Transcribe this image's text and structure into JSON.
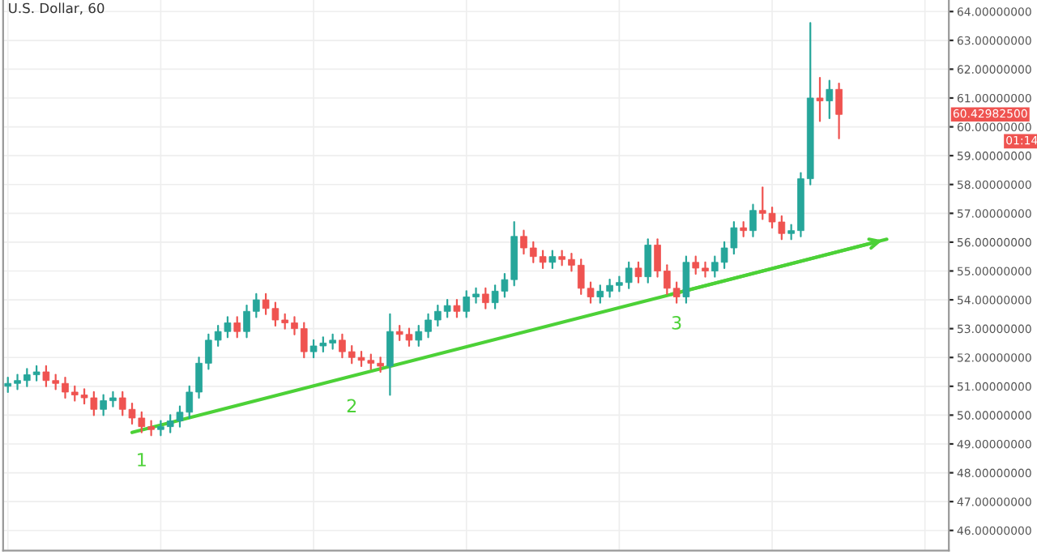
{
  "chart_data": {
    "type": "candlestick",
    "title": "U.S. Dollar, 60",
    "categories": [
      null,
      null,
      null,
      null,
      null,
      null,
      null,
      null,
      null,
      null,
      null,
      null,
      null,
      null,
      null,
      null,
      null,
      null,
      null,
      null,
      null,
      null,
      null,
      null,
      null,
      null,
      null,
      null,
      null,
      null,
      null,
      null,
      null,
      null,
      null,
      null,
      null,
      null,
      null,
      null,
      null,
      null,
      null,
      null,
      null,
      null,
      null,
      null,
      null,
      null,
      null,
      null,
      null,
      null,
      null,
      null,
      null,
      null,
      null,
      null,
      null,
      null,
      null,
      null,
      null,
      null,
      null,
      null,
      null,
      null,
      null,
      null,
      null,
      null,
      null,
      null,
      null,
      null,
      null,
      null,
      null,
      null,
      null,
      null,
      null,
      null,
      null,
      null,
      null,
      null,
      null,
      null,
      null,
      null,
      null,
      null,
      null,
      null,
      null
    ],
    "ohlc": [
      [
        51.0,
        51.3,
        50.8,
        51.1
      ],
      [
        51.1,
        51.4,
        50.9,
        51.2
      ],
      [
        51.2,
        51.6,
        51.0,
        51.4
      ],
      [
        51.4,
        51.7,
        51.2,
        51.5
      ],
      [
        51.5,
        51.7,
        51.0,
        51.2
      ],
      [
        51.2,
        51.4,
        50.9,
        51.1
      ],
      [
        51.1,
        51.3,
        50.6,
        50.8
      ],
      [
        50.8,
        51.0,
        50.5,
        50.7
      ],
      [
        50.7,
        50.9,
        50.4,
        50.6
      ],
      [
        50.6,
        50.8,
        50.0,
        50.2
      ],
      [
        50.2,
        50.7,
        50.0,
        50.5
      ],
      [
        50.5,
        50.8,
        50.3,
        50.6
      ],
      [
        50.6,
        50.8,
        50.0,
        50.2
      ],
      [
        50.2,
        50.4,
        49.7,
        49.9
      ],
      [
        49.9,
        50.1,
        49.4,
        49.6
      ],
      [
        49.6,
        49.8,
        49.3,
        49.5
      ],
      [
        49.5,
        49.8,
        49.3,
        49.6
      ],
      [
        49.6,
        50.0,
        49.4,
        49.8
      ],
      [
        49.8,
        50.3,
        49.6,
        50.1
      ],
      [
        50.1,
        51.0,
        49.9,
        50.8
      ],
      [
        50.8,
        52.0,
        50.6,
        51.8
      ],
      [
        51.8,
        52.8,
        51.6,
        52.6
      ],
      [
        52.6,
        53.1,
        52.4,
        52.9
      ],
      [
        52.9,
        53.4,
        52.7,
        53.2
      ],
      [
        53.2,
        53.4,
        52.7,
        52.9
      ],
      [
        52.9,
        53.8,
        52.7,
        53.6
      ],
      [
        53.6,
        54.2,
        53.4,
        54.0
      ],
      [
        54.0,
        54.2,
        53.5,
        53.7
      ],
      [
        53.7,
        53.9,
        53.1,
        53.3
      ],
      [
        53.3,
        53.5,
        53.0,
        53.2
      ],
      [
        53.2,
        53.4,
        52.8,
        53.0
      ],
      [
        53.0,
        53.2,
        52.0,
        52.2
      ],
      [
        52.2,
        52.6,
        52.0,
        52.4
      ],
      [
        52.4,
        52.7,
        52.2,
        52.5
      ],
      [
        52.5,
        52.8,
        52.3,
        52.6
      ],
      [
        52.6,
        52.8,
        52.0,
        52.2
      ],
      [
        52.2,
        52.4,
        51.8,
        52.0
      ],
      [
        52.0,
        52.2,
        51.7,
        51.9
      ],
      [
        51.9,
        52.1,
        51.6,
        51.8
      ],
      [
        51.8,
        52.0,
        51.5,
        51.7
      ],
      [
        51.7,
        53.5,
        50.7,
        52.9
      ],
      [
        52.9,
        53.1,
        52.6,
        52.8
      ],
      [
        52.8,
        53.0,
        52.4,
        52.6
      ],
      [
        52.6,
        53.1,
        52.4,
        52.9
      ],
      [
        52.9,
        53.5,
        52.7,
        53.3
      ],
      [
        53.3,
        53.8,
        53.1,
        53.6
      ],
      [
        53.6,
        54.0,
        53.4,
        53.8
      ],
      [
        53.8,
        54.0,
        53.4,
        53.6
      ],
      [
        53.6,
        54.3,
        53.4,
        54.1
      ],
      [
        54.1,
        54.4,
        53.9,
        54.2
      ],
      [
        54.2,
        54.4,
        53.7,
        53.9
      ],
      [
        53.9,
        54.5,
        53.7,
        54.3
      ],
      [
        54.3,
        54.9,
        54.1,
        54.7
      ],
      [
        54.7,
        56.7,
        54.5,
        56.2
      ],
      [
        56.2,
        56.4,
        55.6,
        55.8
      ],
      [
        55.8,
        56.0,
        55.3,
        55.5
      ],
      [
        55.5,
        55.7,
        55.1,
        55.3
      ],
      [
        55.3,
        55.7,
        55.1,
        55.5
      ],
      [
        55.5,
        55.7,
        55.2,
        55.4
      ],
      [
        55.4,
        55.6,
        55.0,
        55.2
      ],
      [
        55.2,
        55.4,
        54.2,
        54.4
      ],
      [
        54.4,
        54.6,
        53.9,
        54.1
      ],
      [
        54.1,
        54.5,
        53.9,
        54.3
      ],
      [
        54.3,
        54.7,
        54.1,
        54.5
      ],
      [
        54.5,
        54.8,
        54.3,
        54.6
      ],
      [
        54.6,
        55.3,
        54.4,
        55.1
      ],
      [
        55.1,
        55.3,
        54.6,
        54.8
      ],
      [
        54.8,
        56.1,
        54.6,
        55.9
      ],
      [
        55.9,
        56.1,
        54.8,
        55.0
      ],
      [
        55.0,
        55.2,
        54.2,
        54.4
      ],
      [
        54.4,
        54.6,
        53.9,
        54.1
      ],
      [
        54.1,
        55.5,
        53.9,
        55.3
      ],
      [
        55.3,
        55.5,
        54.9,
        55.1
      ],
      [
        55.1,
        55.3,
        54.8,
        55.0
      ],
      [
        55.0,
        55.5,
        54.8,
        55.3
      ],
      [
        55.3,
        56.0,
        55.1,
        55.8
      ],
      [
        55.8,
        56.7,
        55.6,
        56.5
      ],
      [
        56.5,
        56.7,
        56.2,
        56.4
      ],
      [
        56.4,
        57.3,
        56.2,
        57.1
      ],
      [
        57.1,
        57.9,
        56.8,
        57.0
      ],
      [
        57.0,
        57.2,
        56.5,
        56.7
      ],
      [
        56.7,
        56.9,
        56.1,
        56.3
      ],
      [
        56.3,
        56.6,
        56.1,
        56.4
      ],
      [
        56.4,
        58.4,
        56.2,
        58.2
      ],
      [
        58.2,
        63.6,
        58.0,
        61.0
      ],
      [
        61.0,
        61.7,
        60.2,
        60.9
      ],
      [
        60.9,
        61.6,
        60.3,
        61.3
      ],
      [
        61.3,
        61.5,
        59.6,
        60.43
      ],
      null,
      null,
      null,
      null,
      null,
      null,
      null,
      null,
      null,
      null,
      null
    ],
    "colors": [
      "#26a69a",
      "#26a69a",
      "#26a69a",
      "#26a69a",
      "#ef5350",
      "#ef5350",
      "#ef5350",
      "#ef5350",
      "#ef5350",
      "#ef5350",
      "#26a69a",
      "#26a69a",
      "#ef5350",
      "#ef5350",
      "#ef5350",
      "#ef5350",
      "#26a69a",
      "#26a69a",
      "#26a69a",
      "#26a69a",
      "#26a69a",
      "#26a69a",
      "#26a69a",
      "#26a69a",
      "#ef5350",
      "#26a69a",
      "#26a69a",
      "#ef5350",
      "#ef5350",
      "#ef5350",
      "#ef5350",
      "#ef5350",
      "#26a69a",
      "#26a69a",
      "#26a69a",
      "#ef5350",
      "#ef5350",
      "#ef5350",
      "#ef5350",
      "#ef5350",
      "#26a69a",
      "#ef5350",
      "#ef5350",
      "#26a69a",
      "#26a69a",
      "#26a69a",
      "#26a69a",
      "#ef5350",
      "#26a69a",
      "#26a69a",
      "#ef5350",
      "#26a69a",
      "#26a69a",
      "#26a69a",
      "#ef5350",
      "#ef5350",
      "#ef5350",
      "#26a69a",
      "#ef5350",
      "#ef5350",
      "#ef5350",
      "#ef5350",
      "#26a69a",
      "#26a69a",
      "#26a69a",
      "#26a69a",
      "#ef5350",
      "#26a69a",
      "#ef5350",
      "#ef5350",
      "#ef5350",
      "#26a69a",
      "#ef5350",
      "#ef5350",
      "#26a69a",
      "#26a69a",
      "#26a69a",
      "#ef5350",
      "#26a69a",
      "#ef5350",
      "#ef5350",
      "#ef5350",
      "#26a69a",
      "#26a69a",
      "#26a69a",
      "#ef5350",
      "#26a69a",
      "#ef5350",
      null,
      null,
      null,
      null,
      null,
      null,
      null,
      null,
      null,
      null,
      null
    ],
    "series": [
      {
        "type": "line",
        "color": "#4cd137",
        "values": [
          null,
          null,
          null,
          null,
          null,
          null,
          null,
          null,
          null,
          null,
          null,
          null,
          null,
          49.4,
          null,
          null,
          null,
          null,
          null,
          null,
          null,
          null,
          null,
          null,
          null,
          null,
          null,
          null,
          null,
          null,
          null,
          null,
          null,
          null,
          null,
          51.27,
          null,
          null,
          null,
          null,
          null,
          null,
          null,
          null,
          null,
          null,
          null,
          null,
          null,
          null,
          null,
          null,
          null,
          null,
          null,
          null,
          null,
          null,
          null,
          null,
          null,
          null,
          null,
          null,
          null,
          null,
          null,
          null,
          null,
          54.15,
          null,
          null,
          null,
          null,
          null,
          null,
          null,
          null,
          null,
          null,
          null,
          null,
          null,
          null,
          null,
          null,
          null,
          null,
          null,
          null,
          null,
          null,
          56.1,
          null,
          null,
          null,
          null,
          null,
          null
        ]
      }
    ],
    "annotations": [
      "1",
      "2",
      "3",
      "60.42982500",
      "01:14"
    ],
    "ylim": [
      45.3,
      64.4
    ],
    "yticks": [
      {
        "value": 46,
        "label": "46.00000000"
      },
      {
        "value": 47,
        "label": "47.00000000"
      },
      {
        "value": 48,
        "label": "48.00000000"
      },
      {
        "value": 49,
        "label": "49.00000000"
      },
      {
        "value": 50,
        "label": "50.00000000"
      },
      {
        "value": 51,
        "label": "51.00000000"
      },
      {
        "value": 52,
        "label": "52.00000000"
      },
      {
        "value": 53,
        "label": "53.00000000"
      },
      {
        "value": 54,
        "label": "54.00000000"
      },
      {
        "value": 55,
        "label": "55.00000000"
      },
      {
        "value": 56,
        "label": "56.00000000"
      },
      {
        "value": 57,
        "label": "57.00000000"
      },
      {
        "value": 58,
        "label": "58.00000000"
      },
      {
        "value": 59,
        "label": "59.00000000"
      },
      {
        "value": 60,
        "label": "60.00000000"
      },
      {
        "value": 61,
        "label": "61.00000000"
      },
      {
        "value": 62,
        "label": "62.00000000"
      },
      {
        "value": 63,
        "label": "63.00000000"
      },
      {
        "value": 64,
        "label": "64.00000000"
      }
    ],
    "tick_labels": "y",
    "grid": true
  }
}
